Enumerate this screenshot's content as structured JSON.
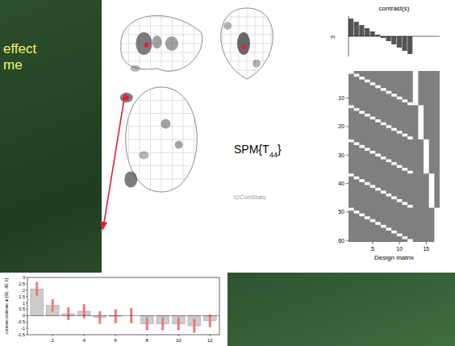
{
  "slide": {
    "text_lines": [
      "effect",
      "me"
    ]
  },
  "stat_label": {
    "main": "SPM{T",
    "sub": "44",
    "end": "}"
  },
  "caption": "t2ConStats",
  "contrast": {
    "title": "contrast(s)",
    "number": "3",
    "weights": [
      5.5,
      4.5,
      3.5,
      2.5,
      1.5,
      0.5,
      -0.5,
      -1.5,
      -2.5,
      -3.5,
      -4.5,
      -5.5,
      0,
      0,
      0,
      0,
      0
    ]
  },
  "design_matrix": {
    "xlabel": "Design matrix",
    "rows": 60,
    "conditions": 12,
    "subjects": 5,
    "xticks": [
      5,
      10,
      15
    ],
    "yticks": [
      10,
      20,
      30,
      40,
      50,
      60
    ]
  },
  "chart_data": {
    "type": "bar",
    "ylabel": "contrast estimate at [56, -48, 0]",
    "x": [
      1,
      2,
      3,
      4,
      5,
      6,
      7,
      8,
      9,
      10,
      11,
      12
    ],
    "values": [
      2.1,
      0.8,
      0.15,
      0.35,
      -0.15,
      -0.05,
      0,
      -0.65,
      -0.65,
      -0.65,
      -0.8,
      -0.4
    ],
    "errors": [
      0.55,
      0.5,
      0.5,
      0.55,
      0.5,
      0.55,
      0.6,
      0.5,
      0.5,
      0.5,
      0.55,
      0.5
    ],
    "color": "#cccccc",
    "error_color": "#f07878",
    "xlim": [
      0.4,
      12.6
    ],
    "xticks": [
      2,
      4,
      6,
      8,
      10,
      12
    ],
    "ylim": [
      -1.5,
      3
    ],
    "yticks": [
      -1.5,
      -1,
      -0.5,
      0,
      0.5,
      1,
      1.5,
      2,
      2.5,
      3
    ]
  }
}
